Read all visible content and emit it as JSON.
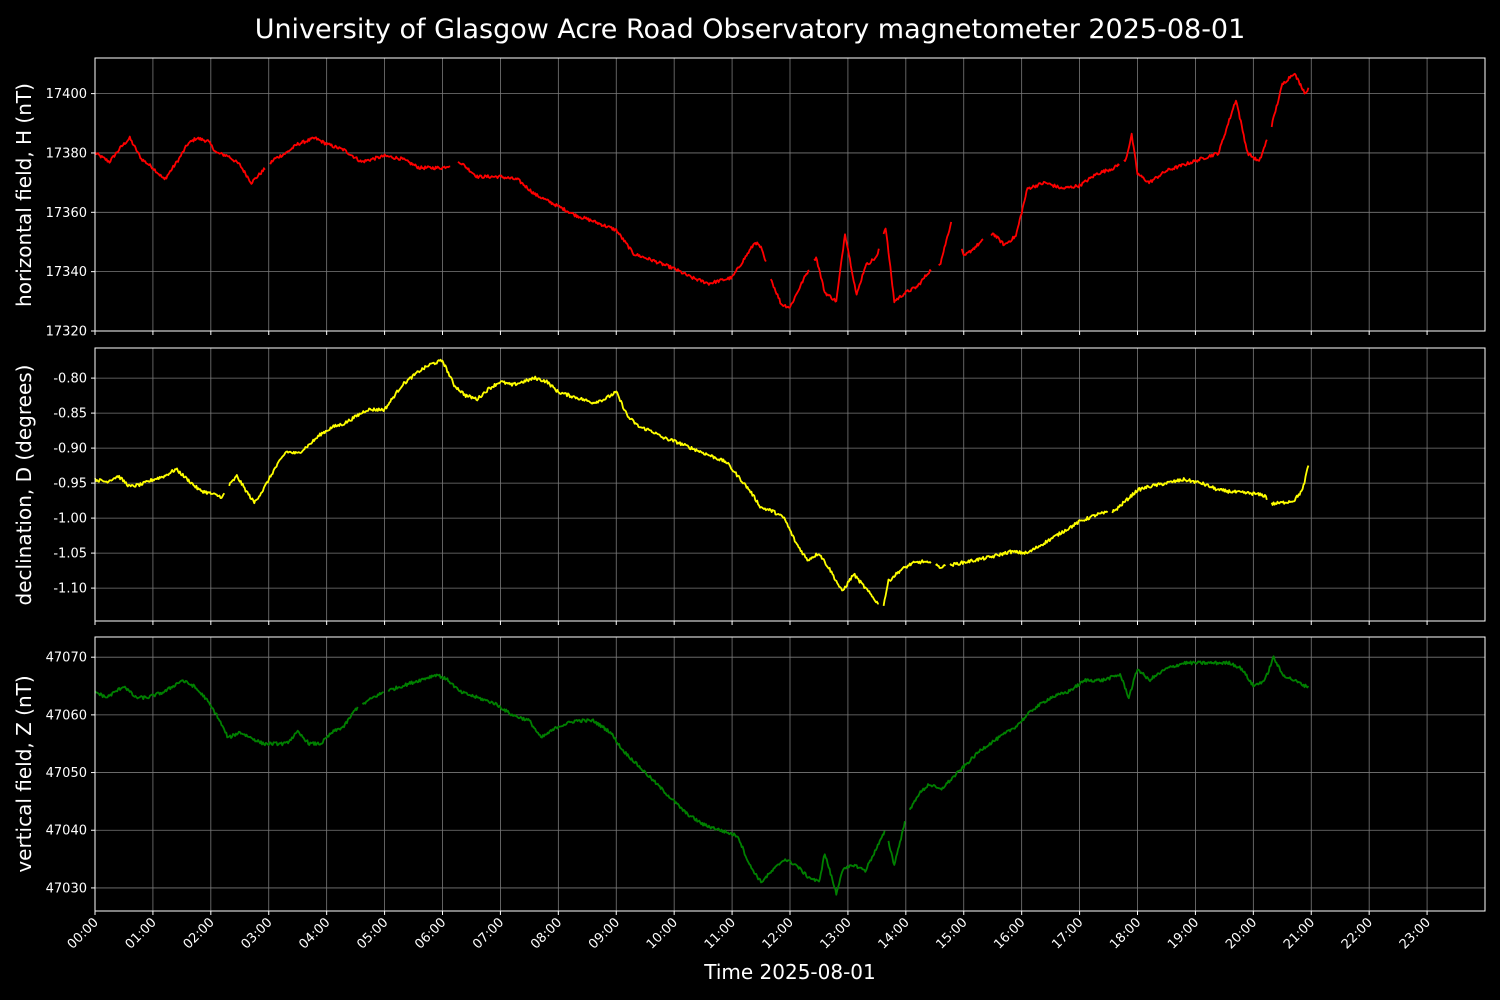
{
  "chart_data": [
    {
      "type": "line",
      "title": "University of Glasgow Acre Road Observatory magnetometer 2025-08-01",
      "ylabel": "horizontal field, H (nT)",
      "ylim": [
        17320,
        17412
      ],
      "yticks": [
        "17320",
        "17340",
        "17360",
        "17380",
        "17400"
      ],
      "color": "#ff0000",
      "grid": true,
      "series": [
        {
          "x": [
            0,
            0.25,
            0.45,
            0.6,
            0.8,
            1.0,
            1.2,
            1.45,
            1.6,
            1.75,
            1.95,
            2.1,
            2.3,
            2.5,
            2.7,
            2.9,
            3.1,
            3.3,
            3.5,
            3.8,
            4.0,
            4.3,
            4.6,
            5.0,
            5.3,
            5.6,
            6.0,
            6.3,
            6.6,
            7.0,
            7.3,
            7.6,
            8.0,
            8.3,
            8.6,
            9.0,
            9.3,
            9.6,
            10.0,
            10.3,
            10.6,
            11.0,
            11.2,
            11.4,
            11.5,
            11.7,
            11.85,
            12.0,
            12.25,
            12.45,
            12.6,
            12.8,
            12.95,
            13.15,
            13.3,
            13.5,
            13.65,
            13.8,
            14.0,
            14.2,
            14.4,
            14.6,
            14.8,
            15.0,
            15.3,
            15.5,
            15.7,
            15.9,
            16.1,
            16.4,
            16.7,
            17.0,
            17.3,
            17.6,
            17.8,
            17.9,
            18.0,
            18.2,
            18.5,
            18.8,
            19.1,
            19.4,
            19.7,
            19.9,
            20.1,
            20.3,
            20.5,
            20.7,
            20.9,
            20.95
          ],
          "y": [
            17380,
            17377,
            17382,
            17385,
            17378,
            17375,
            17371,
            17378,
            17383,
            17385,
            17384,
            17380,
            17379,
            17376,
            17370,
            17374,
            17378,
            17380,
            17383,
            17385,
            17383,
            17381,
            17377,
            17379,
            17378,
            17375,
            17375,
            17377,
            17372,
            17372,
            17371,
            17366,
            17362,
            17359,
            17357,
            17354,
            17346,
            17344,
            17341,
            17338,
            17336,
            17338,
            17344,
            17350,
            17348,
            17336,
            17329,
            17328,
            17338,
            17345,
            17333,
            17330,
            17353,
            17332,
            17342,
            17345,
            17355,
            17330,
            17333,
            17335,
            17340,
            17343,
            17358,
            17345,
            17350,
            17353,
            17349,
            17352,
            17368,
            17370,
            17368,
            17369,
            17373,
            17375,
            17378,
            17386,
            17373,
            17370,
            17374,
            17376,
            17378,
            17380,
            17398,
            17380,
            17377,
            17388,
            17403,
            17407,
            17400,
            17402
          ],
          "breaks": [
            [
              2.95,
              3.0
            ],
            [
              6.15,
              6.25
            ],
            [
              11.6,
              11.65
            ],
            [
              12.35,
              12.4
            ],
            [
              13.55,
              13.6
            ],
            [
              14.45,
              14.55
            ],
            [
              14.8,
              14.95
            ],
            [
              15.35,
              15.45
            ],
            [
              17.7,
              17.75
            ],
            [
              20.25,
              20.3
            ]
          ]
        }
      ]
    },
    {
      "type": "line",
      "ylabel": "declination, D (degrees)",
      "ylim": [
        -1.147,
        -0.757
      ],
      "yticks": [
        "-1.10",
        "-1.05",
        "-1.00",
        "-0.95",
        "-0.90",
        "-0.85",
        "-0.80"
      ],
      "color": "#ffff00",
      "grid": true,
      "series": [
        {
          "x": [
            0,
            0.2,
            0.4,
            0.6,
            0.8,
            1.0,
            1.2,
            1.4,
            1.6,
            1.8,
            2.0,
            2.2,
            2.3,
            2.45,
            2.6,
            2.75,
            2.9,
            3.1,
            3.3,
            3.5,
            3.7,
            3.9,
            4.1,
            4.3,
            4.5,
            4.7,
            5.0,
            5.3,
            5.6,
            5.8,
            6.0,
            6.2,
            6.4,
            6.6,
            6.8,
            7.0,
            7.2,
            7.4,
            7.6,
            7.8,
            8.0,
            8.2,
            8.4,
            8.6,
            8.8,
            9.0,
            9.2,
            9.4,
            9.6,
            9.8,
            10.0,
            10.3,
            10.6,
            10.9,
            11.1,
            11.3,
            11.5,
            11.7,
            11.9,
            12.1,
            12.3,
            12.5,
            12.7,
            12.9,
            13.1,
            13.3,
            13.5,
            13.6,
            13.7,
            13.9,
            14.1,
            14.3,
            14.6,
            14.9,
            15.2,
            15.5,
            15.8,
            16.1,
            16.4,
            16.7,
            17.0,
            17.3,
            17.6,
            17.8,
            18.0,
            18.2,
            18.5,
            18.8,
            19.1,
            19.4,
            19.7,
            20.0,
            20.2,
            20.3,
            20.5,
            20.7,
            20.85,
            20.95
          ],
          "y": [
            -0.945,
            -0.948,
            -0.94,
            -0.955,
            -0.952,
            -0.945,
            -0.94,
            -0.93,
            -0.945,
            -0.96,
            -0.965,
            -0.97,
            -0.955,
            -0.94,
            -0.96,
            -0.978,
            -0.96,
            -0.93,
            -0.905,
            -0.908,
            -0.895,
            -0.88,
            -0.87,
            -0.865,
            -0.855,
            -0.845,
            -0.845,
            -0.81,
            -0.79,
            -0.78,
            -0.775,
            -0.81,
            -0.825,
            -0.83,
            -0.815,
            -0.805,
            -0.81,
            -0.805,
            -0.8,
            -0.805,
            -0.82,
            -0.825,
            -0.83,
            -0.835,
            -0.83,
            -0.82,
            -0.855,
            -0.87,
            -0.875,
            -0.885,
            -0.89,
            -0.9,
            -0.91,
            -0.92,
            -0.94,
            -0.96,
            -0.985,
            -0.99,
            -1.0,
            -1.035,
            -1.06,
            -1.05,
            -1.075,
            -1.105,
            -1.08,
            -1.1,
            -1.12,
            -1.13,
            -1.09,
            -1.075,
            -1.065,
            -1.062,
            -1.07,
            -1.065,
            -1.06,
            -1.055,
            -1.048,
            -1.05,
            -1.035,
            -1.02,
            -1.005,
            -0.995,
            -0.99,
            -0.975,
            -0.96,
            -0.955,
            -0.95,
            -0.945,
            -0.95,
            -0.96,
            -0.963,
            -0.965,
            -0.968,
            -0.98,
            -0.978,
            -0.975,
            -0.96,
            -0.925
          ],
          "breaks": [
            [
              2.25,
              2.3
            ],
            [
              13.55,
              13.6
            ],
            [
              14.45,
              14.5
            ],
            [
              14.7,
              14.75
            ],
            [
              17.5,
              17.55
            ],
            [
              20.25,
              20.3
            ]
          ]
        }
      ]
    },
    {
      "type": "line",
      "ylabel": "vertical field, Z (nT)",
      "ylim": [
        47026,
        47073.5
      ],
      "yticks": [
        "47030",
        "47040",
        "47050",
        "47060",
        "47070"
      ],
      "color": "#008000",
      "grid": true,
      "xlabel": "Time 2025-08-01",
      "xticks": [
        "00:00",
        "01:00",
        "02:00",
        "03:00",
        "04:00",
        "05:00",
        "06:00",
        "07:00",
        "08:00",
        "09:00",
        "10:00",
        "11:00",
        "12:00",
        "13:00",
        "14:00",
        "15:00",
        "16:00",
        "17:00",
        "18:00",
        "19:00",
        "20:00",
        "21:00",
        "22:00",
        "23:00"
      ],
      "xlim": [
        0,
        24
      ],
      "series": [
        {
          "x": [
            0,
            0.2,
            0.5,
            0.7,
            0.9,
            1.2,
            1.5,
            1.7,
            1.9,
            2.1,
            2.3,
            2.5,
            2.7,
            2.9,
            3.1,
            3.3,
            3.5,
            3.7,
            3.9,
            4.1,
            4.3,
            4.5,
            4.8,
            5.0,
            5.3,
            5.6,
            5.9,
            6.1,
            6.3,
            6.6,
            6.9,
            7.2,
            7.5,
            7.7,
            8.0,
            8.3,
            8.6,
            8.9,
            9.1,
            9.3,
            9.6,
            9.9,
            10.2,
            10.5,
            10.8,
            11.1,
            11.3,
            11.5,
            11.7,
            11.9,
            12.1,
            12.3,
            12.5,
            12.6,
            12.8,
            12.9,
            13.1,
            13.3,
            13.5,
            13.65,
            13.8,
            14.0,
            14.2,
            14.4,
            14.6,
            14.8,
            15.0,
            15.3,
            15.6,
            15.9,
            16.2,
            16.5,
            16.8,
            17.1,
            17.4,
            17.7,
            17.85,
            18.0,
            18.2,
            18.5,
            18.8,
            19.1,
            19.4,
            19.6,
            19.8,
            20.0,
            20.2,
            20.35,
            20.5,
            20.7,
            20.9,
            20.95
          ],
          "y": [
            47064,
            47063,
            47065,
            47063,
            47063,
            47064,
            47066,
            47065,
            47063,
            47060,
            47056,
            47057,
            47056,
            47055,
            47055,
            47055,
            47057,
            47055,
            47055,
            47057,
            47058,
            47061,
            47063,
            47064,
            47065,
            47066,
            47067,
            47066,
            47064,
            47063,
            47062,
            47060,
            47059,
            47056,
            47058,
            47059,
            47059,
            47057,
            47054,
            47052,
            47049,
            47046,
            47043,
            47041,
            47040,
            47039,
            47034,
            47031,
            47033,
            47035,
            47034,
            47032,
            47031,
            47036,
            47029,
            47033,
            47034,
            47033,
            47037,
            47040,
            47034,
            47042,
            47046,
            47048,
            47047,
            47049,
            47051,
            47054,
            47056,
            47058,
            47061,
            47063,
            47064,
            47066,
            47066,
            47067,
            47063,
            47068,
            47066,
            47068,
            47069,
            47069,
            47069,
            47069,
            47068,
            47065,
            47066,
            47070,
            47067,
            47066,
            47065,
            47065
          ],
          "breaks": [
            [
              4.55,
              4.6
            ],
            [
              5.0,
              5.05
            ],
            [
              13.65,
              13.7
            ],
            [
              14.0,
              14.05
            ]
          ]
        }
      ]
    }
  ]
}
